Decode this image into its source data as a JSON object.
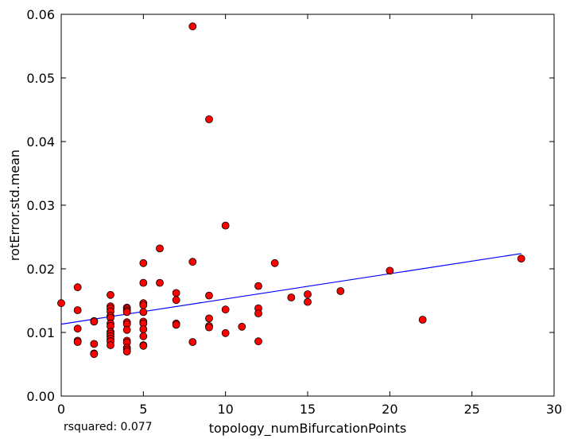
{
  "chart_data": {
    "type": "scatter",
    "title": "",
    "xlabel": "topology_numBifurcationPoints",
    "ylabel": "rotError.std.mean",
    "xlim": [
      0,
      30
    ],
    "ylim": [
      0,
      0.06
    ],
    "xticks": [
      0,
      5,
      10,
      15,
      20,
      25,
      30
    ],
    "xtick_labels": [
      "0",
      "5",
      "10",
      "15",
      "20",
      "25",
      "30"
    ],
    "yticks": [
      0,
      0.01,
      0.02,
      0.03,
      0.04,
      0.05,
      0.06
    ],
    "ytick_labels": [
      "0.00",
      "0.01",
      "0.02",
      "0.03",
      "0.04",
      "0.05",
      "0.06"
    ],
    "grid": false,
    "annotation": "rsquared: 0.077",
    "marker_color": "#ff0000",
    "line_color": "#0000ff",
    "regression_line": {
      "x": [
        0,
        28
      ],
      "y": [
        0.0113,
        0.0224
      ]
    },
    "series": [
      {
        "x": [
          0,
          1,
          1,
          1,
          1,
          1,
          2,
          2,
          2,
          2,
          2,
          3,
          3,
          3,
          3,
          3,
          3,
          3,
          3,
          3,
          3,
          3,
          3,
          3,
          3,
          4,
          4,
          4,
          4,
          4,
          4,
          4,
          4,
          4,
          4,
          4,
          4,
          5,
          5,
          5,
          5,
          5,
          5,
          5,
          5,
          5,
          5,
          5,
          6,
          6,
          7,
          7,
          7,
          7,
          8,
          8,
          8,
          9,
          9,
          9,
          9,
          9,
          10,
          10,
          10,
          11,
          12,
          12,
          12,
          12,
          13,
          14,
          15,
          15,
          17,
          20,
          22,
          28
        ],
        "y": [
          0.0146,
          0.0171,
          0.0135,
          0.0106,
          0.0087,
          0.0085,
          0.0118,
          0.0082,
          0.0067,
          0.0066,
          0.0117,
          0.0159,
          0.0141,
          0.0138,
          0.0133,
          0.0126,
          0.0123,
          0.0114,
          0.011,
          0.0101,
          0.0098,
          0.0094,
          0.009,
          0.0086,
          0.008,
          0.0139,
          0.0137,
          0.0134,
          0.0132,
          0.0116,
          0.0113,
          0.0104,
          0.0087,
          0.0084,
          0.0076,
          0.0073,
          0.007,
          0.0209,
          0.0178,
          0.0146,
          0.0143,
          0.0132,
          0.0117,
          0.0114,
          0.0105,
          0.0094,
          0.008,
          0.0079,
          0.0232,
          0.0178,
          0.0162,
          0.0151,
          0.0114,
          0.0112,
          0.0581,
          0.0211,
          0.0085,
          0.0435,
          0.0158,
          0.0122,
          0.011,
          0.0108,
          0.0268,
          0.0136,
          0.0099,
          0.0109,
          0.0173,
          0.0138,
          0.013,
          0.0086,
          0.0209,
          0.0155,
          0.016,
          0.0148,
          0.0165,
          0.0197,
          0.012,
          0.0216
        ]
      }
    ]
  }
}
